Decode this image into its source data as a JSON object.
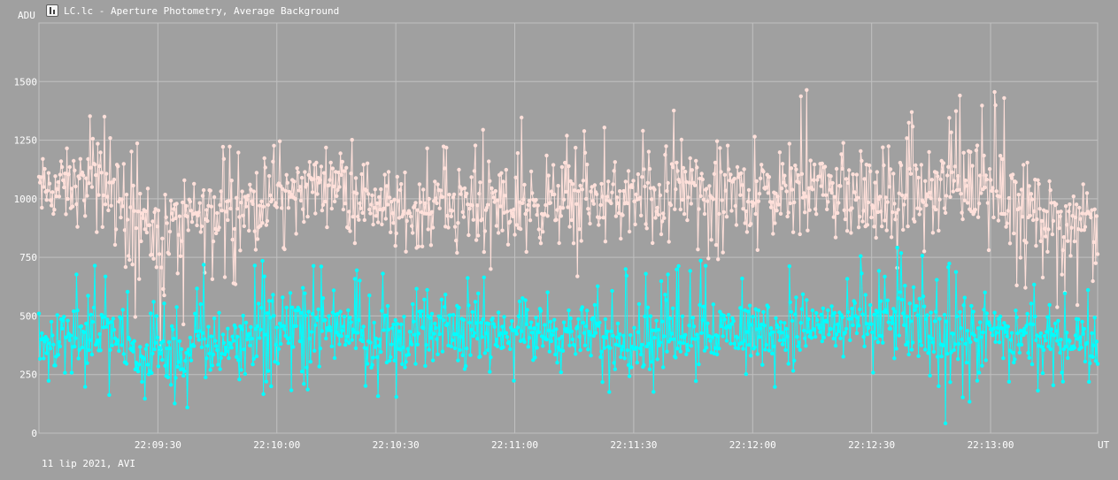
{
  "window": {
    "title": "LC.lc - Aperture Photometry, Average Background",
    "icon": "chart-app-icon"
  },
  "footer": "11 lip 2021, AVI",
  "chart_data": {
    "type": "line",
    "title": "LC.lc - Aperture Photometry, Average Background",
    "ylabel": "ADU",
    "xlabel": "UT",
    "ylim": [
      0,
      1750
    ],
    "yticks": [
      0,
      250,
      500,
      750,
      1000,
      1250,
      1500
    ],
    "ytick_labels": [
      "0",
      "250",
      "500",
      "750",
      "1000",
      "1250",
      "1500"
    ],
    "xlim": [
      "22:09:00",
      "22:13:27"
    ],
    "xticks": [
      "22:09:30",
      "22:10:00",
      "22:10:30",
      "22:11:00",
      "22:11:30",
      "22:12:00",
      "22:12:30",
      "22:13:00"
    ],
    "grid": true,
    "colors": {
      "background": "#a0a0a0",
      "grid": "#c0c0c0",
      "text": "#ffffff"
    },
    "series": [
      {
        "color": "#ffe0da",
        "points_per_series": 1100,
        "x": [
          "22:09:00",
          "22:09:15",
          "22:09:30",
          "22:09:45",
          "22:10:00",
          "22:10:15",
          "22:10:30",
          "22:10:45",
          "22:11:00",
          "22:11:15",
          "22:11:30",
          "22:11:45",
          "22:12:00",
          "22:12:15",
          "22:12:30",
          "22:12:45",
          "22:13:00",
          "22:13:15"
        ],
        "y_center": [
          1040,
          1060,
          880,
          950,
          1010,
          1100,
          930,
          980,
          960,
          990,
          1000,
          1040,
          1010,
          1060,
          980,
          1020,
          1060,
          930
        ],
        "y_min": [
          720,
          760,
          220,
          600,
          680,
          780,
          640,
          700,
          680,
          660,
          640,
          700,
          700,
          700,
          650,
          660,
          720,
          500
        ],
        "y_max": [
          1290,
          1410,
          1150,
          1240,
          1300,
          1320,
          1290,
          1290,
          1420,
          1310,
          1300,
          1480,
          1330,
          1480,
          1430,
          1370,
          1540,
          1130
        ]
      },
      {
        "color": "#00ffff",
        "points_per_series": 1100,
        "x": [
          "22:09:00",
          "22:09:15",
          "22:09:30",
          "22:09:45",
          "22:10:00",
          "22:10:15",
          "22:10:30",
          "22:10:45",
          "22:11:00",
          "22:11:15",
          "22:11:30",
          "22:11:45",
          "22:12:00",
          "22:12:15",
          "22:12:30",
          "22:12:45",
          "22:13:00",
          "22:13:15"
        ],
        "y_center": [
          400,
          430,
          300,
          370,
          460,
          470,
          380,
          440,
          430,
          420,
          390,
          440,
          430,
          450,
          470,
          440,
          420,
          400
        ],
        "y_min": [
          160,
          170,
          80,
          130,
          150,
          200,
          120,
          250,
          210,
          190,
          140,
          200,
          180,
          220,
          200,
          30,
          70,
          190
        ],
        "y_max": [
          760,
          720,
          560,
          770,
          760,
          720,
          780,
          710,
          700,
          640,
          720,
          760,
          720,
          750,
          760,
          850,
          640,
          650
        ]
      }
    ]
  }
}
